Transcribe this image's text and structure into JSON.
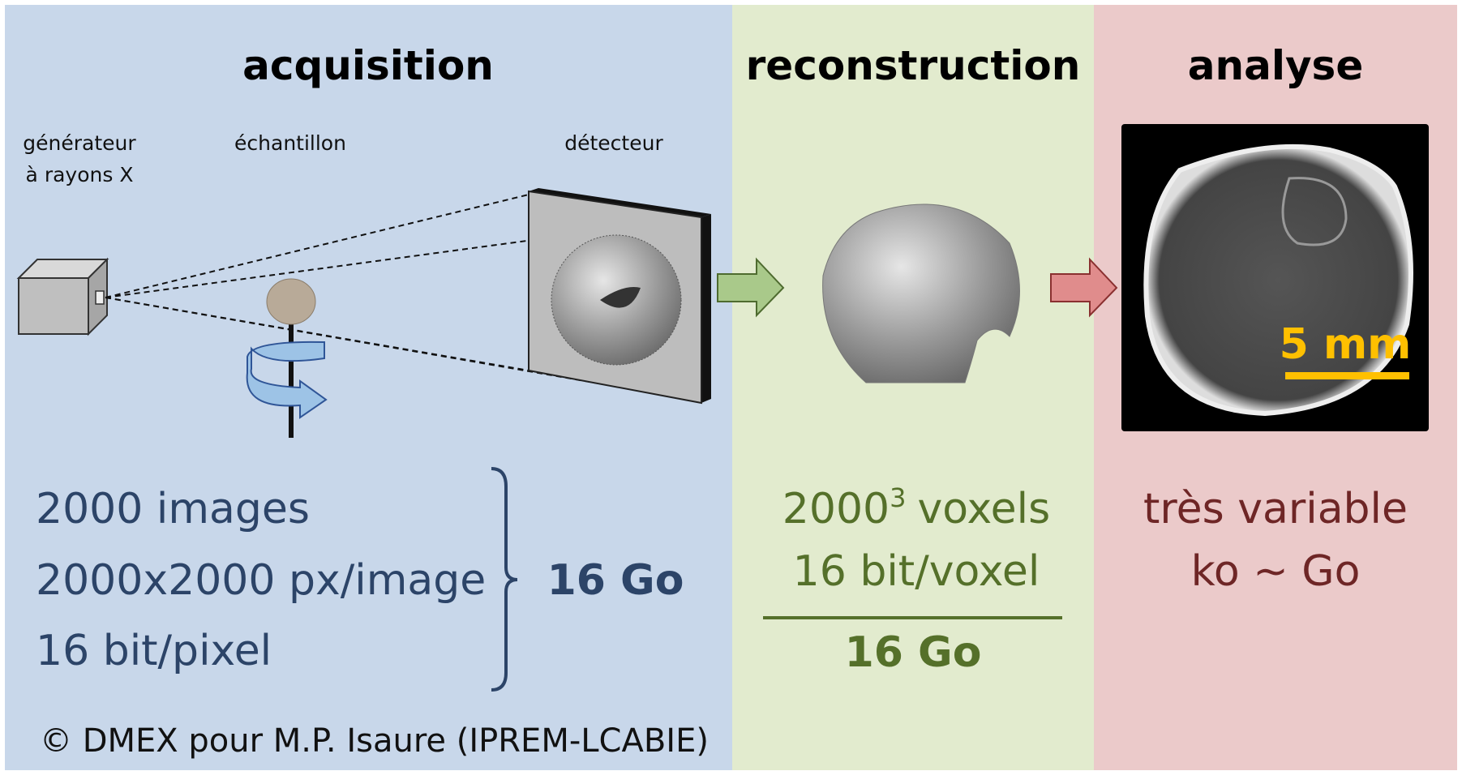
{
  "panels": [
    {
      "title": "acquisition",
      "labels": [
        "générateur",
        "à rayons X",
        "échantillon",
        "détecteur"
      ],
      "lines": [
        "2000 images",
        "2000x2000 px/image",
        "16 bit/pixel"
      ],
      "total": "16 Go"
    },
    {
      "title": "reconstruction",
      "line1": {
        "base": "2000",
        "exponent": "3",
        "rest": "voxels"
      },
      "line2": "16 bit/voxel",
      "total": "16 Go"
    },
    {
      "title": "analyse",
      "scale_bar": "5 mm",
      "lines": [
        "très variable",
        "ko ~ Go"
      ]
    }
  ],
  "credit": "© DMEX pour M.P. Isaure (IPREM-LCABIE)"
}
